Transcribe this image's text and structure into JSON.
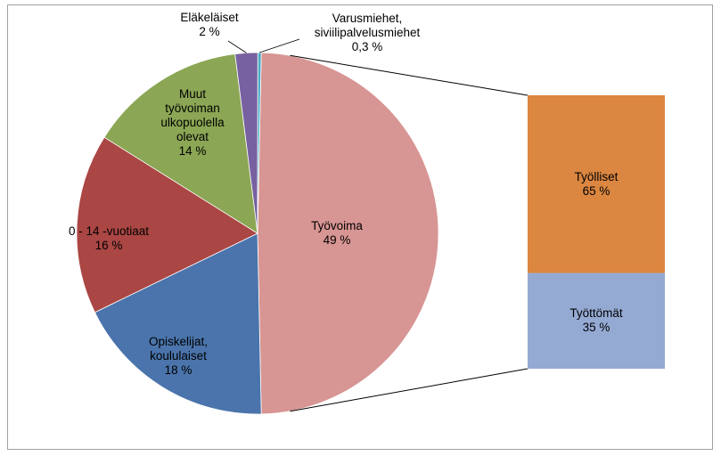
{
  "chart_data": {
    "type": "pie",
    "categories": [
      "Työvoima",
      "Opiskelijat, koululaiset",
      "0 - 14 -vuotiaat",
      "Muut työvoiman ulkopuolella olevat",
      "Eläkeläiset",
      "Varusmiehet, siviilipalvelusmiehet"
    ],
    "values": [
      49,
      18,
      16,
      14,
      2,
      0.3
    ],
    "value_labels": [
      "49 %",
      "18 %",
      "16 %",
      "14 %",
      "2 %",
      "0,3 %"
    ],
    "colors": [
      "#d79593",
      "#4a74ab",
      "#aa4644",
      "#8ba654",
      "#7761a0",
      "#4bacc6"
    ],
    "breakdown": {
      "categories": [
        "Työlliset",
        "Työttömät"
      ],
      "values": [
        65,
        35
      ],
      "value_labels": [
        "65 %",
        "35 %"
      ],
      "colors": [
        "#db8641",
        "#95aad3"
      ]
    }
  }
}
